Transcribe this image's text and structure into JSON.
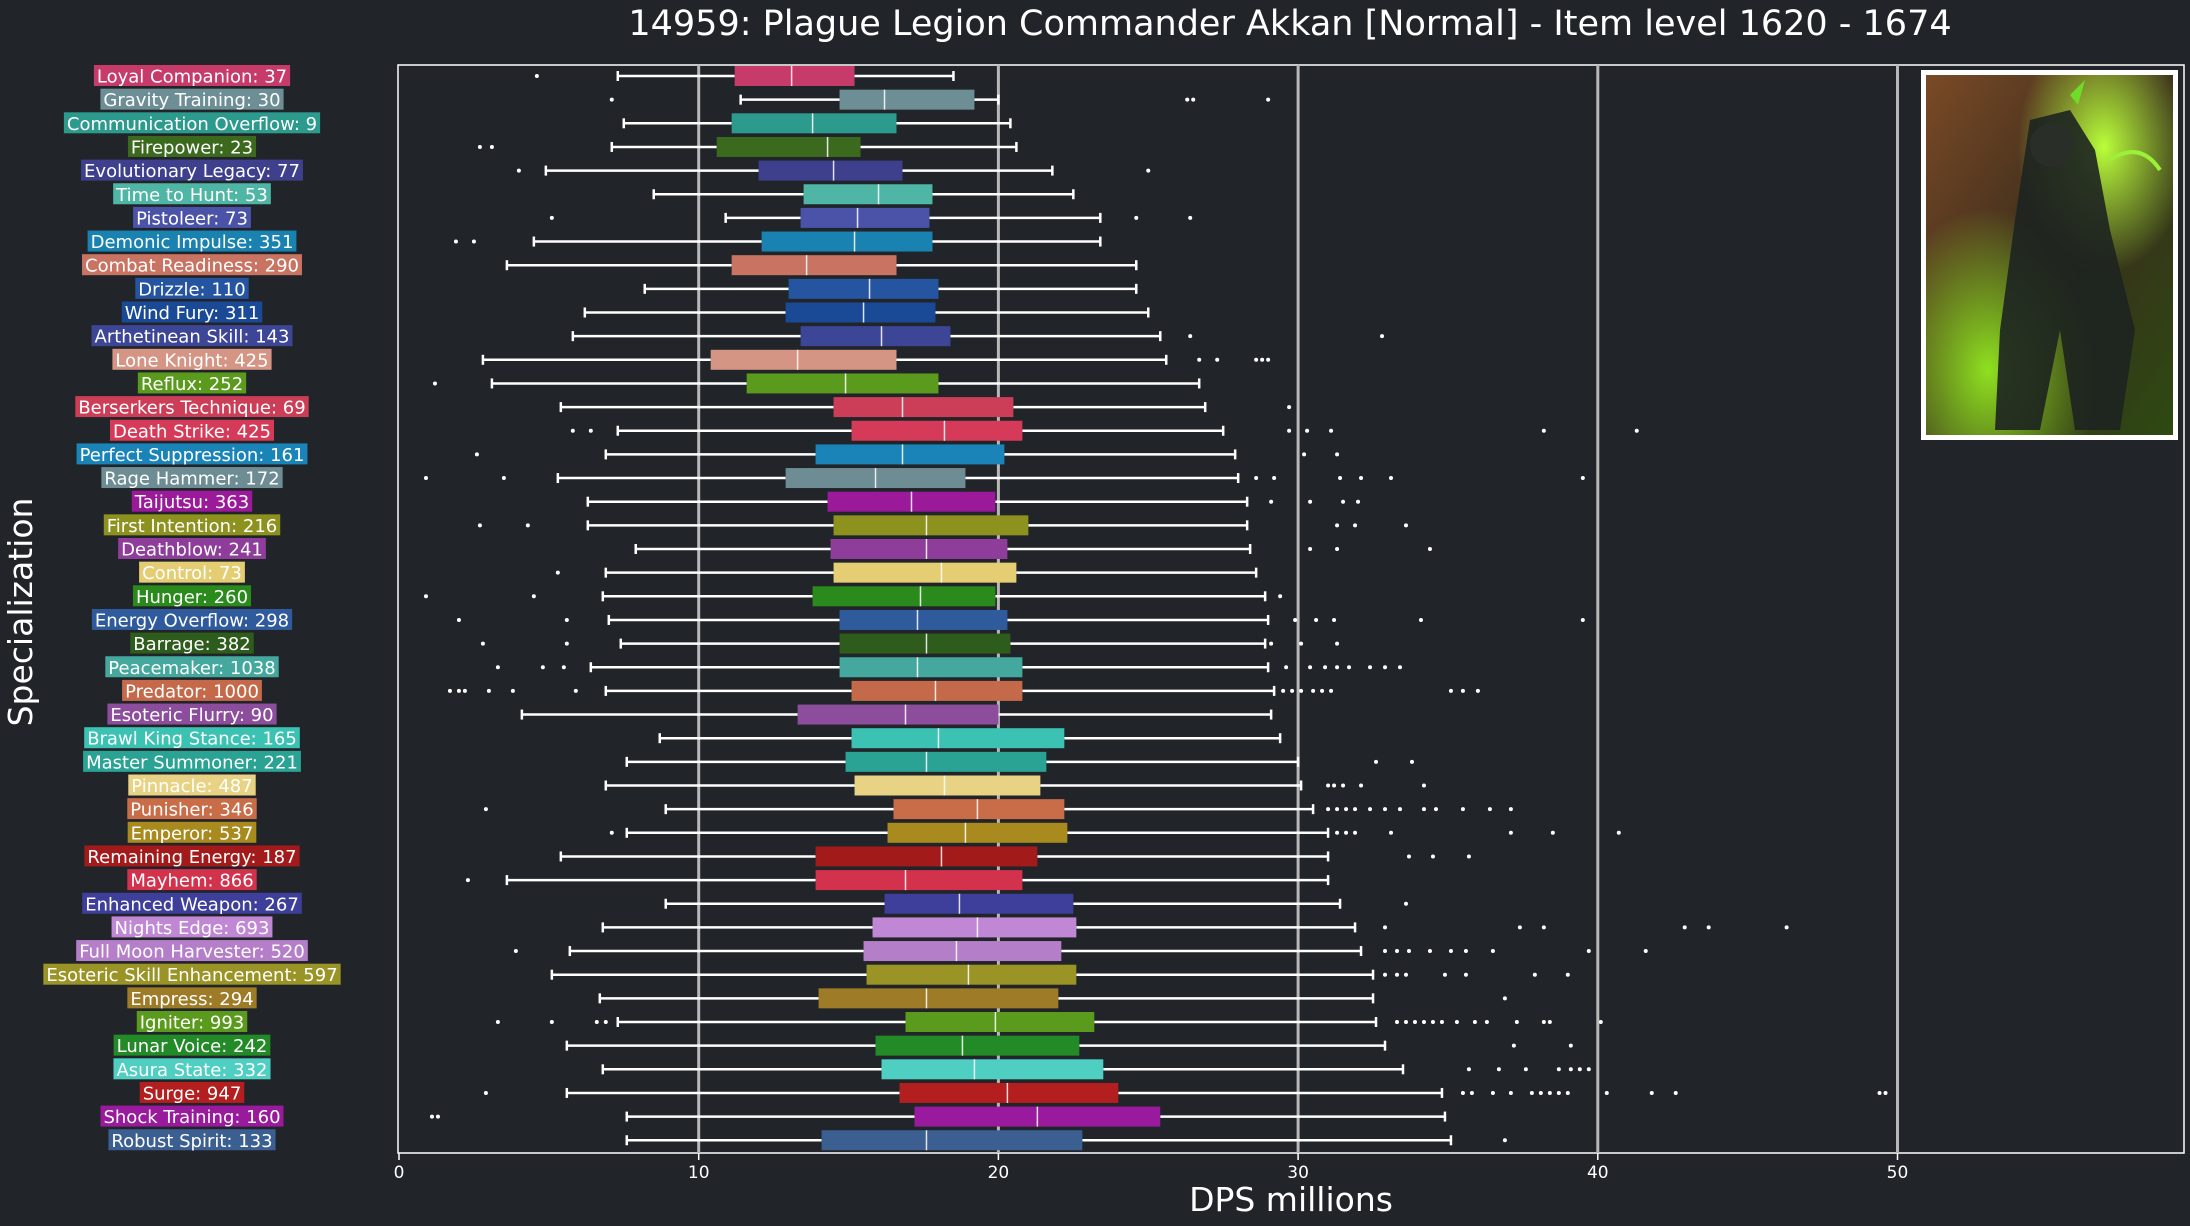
{
  "chart_data": {
    "type": "box",
    "title": "14959: Plague Legion Commander Akkan [Normal] - Item level 1620 - 1674",
    "xlabel": "DPS millions",
    "ylabel": "Specialization",
    "xlim": [
      0,
      59.5
    ],
    "xticks": [
      0,
      10,
      20,
      30,
      40,
      50
    ],
    "grid": "vertical lines at 10, 20, 30, 40, 50",
    "thumbnail": "boss-portrait (Plague Legion Commander Akkan, green flames)",
    "colors": {
      "background": "#212429",
      "grid": "#b8b8b8",
      "whisker": "#ffffff",
      "median": "#ffffff"
    },
    "series": [
      {
        "label": "Loyal Companion: 37",
        "color": "#c73b6a",
        "wmin": 7.3,
        "q1": 11.2,
        "med": 13.1,
        "q3": 15.2,
        "wmax": 18.5,
        "outliers": [
          4.6
        ]
      },
      {
        "label": "Gravity Training: 30",
        "color": "#6c8e94",
        "wmin": 11.4,
        "q1": 14.7,
        "med": 16.2,
        "q3": 19.2,
        "wmax": 20.0,
        "outliers": [
          7.1,
          26.3,
          26.5,
          29.0
        ]
      },
      {
        "label": "Communication Overflow: 9",
        "color": "#2c9a8c",
        "wmin": 7.5,
        "q1": 11.1,
        "med": 13.8,
        "q3": 16.6,
        "wmax": 20.4,
        "outliers": []
      },
      {
        "label": "Firepower: 23",
        "color": "#3b6a1e",
        "wmin": 7.1,
        "q1": 10.6,
        "med": 14.3,
        "q3": 15.4,
        "wmax": 20.6,
        "outliers": [
          2.7,
          3.1
        ]
      },
      {
        "label": "Evolutionary Legacy: 77",
        "color": "#3e3f8d",
        "wmin": 4.9,
        "q1": 12.0,
        "med": 14.5,
        "q3": 16.8,
        "wmax": 21.8,
        "outliers": [
          4.0,
          25.0
        ]
      },
      {
        "label": "Time to Hunt: 53",
        "color": "#4fb5a5",
        "wmin": 8.5,
        "q1": 13.5,
        "med": 16.0,
        "q3": 17.8,
        "wmax": 22.5,
        "outliers": []
      },
      {
        "label": "Pistoleer: 73",
        "color": "#4b53a8",
        "wmin": 10.9,
        "q1": 13.4,
        "med": 15.3,
        "q3": 17.7,
        "wmax": 23.4,
        "outliers": [
          5.1,
          24.6,
          26.4
        ]
      },
      {
        "label": "Demonic Impulse: 351",
        "color": "#1a82b0",
        "wmin": 4.5,
        "q1": 12.1,
        "med": 15.2,
        "q3": 17.8,
        "wmax": 23.4,
        "outliers": [
          1.9,
          2.5
        ]
      },
      {
        "label": "Combat Readiness: 290",
        "color": "#c97462",
        "wmin": 3.6,
        "q1": 11.1,
        "med": 13.6,
        "q3": 16.6,
        "wmax": 24.6,
        "outliers": []
      },
      {
        "label": "Drizzle: 110",
        "color": "#2554a0",
        "wmin": 8.2,
        "q1": 13.0,
        "med": 15.7,
        "q3": 18.0,
        "wmax": 24.6,
        "outliers": []
      },
      {
        "label": "Wind Fury: 311",
        "color": "#1a4a96",
        "wmin": 6.2,
        "q1": 12.9,
        "med": 15.5,
        "q3": 17.9,
        "wmax": 25.0,
        "outliers": []
      },
      {
        "label": "Arthetinean Skill: 143",
        "color": "#3c4596",
        "wmin": 5.8,
        "q1": 13.4,
        "med": 16.1,
        "q3": 18.4,
        "wmax": 25.4,
        "outliers": [
          26.4,
          32.8
        ]
      },
      {
        "label": "Lone Knight: 425",
        "color": "#d49585",
        "wmin": 2.8,
        "q1": 10.4,
        "med": 13.3,
        "q3": 16.6,
        "wmax": 25.6,
        "outliers": [
          26.7,
          27.3,
          28.6,
          28.8,
          29.0
        ]
      },
      {
        "label": "Reflux: 252",
        "color": "#5a9a1c",
        "wmin": 3.1,
        "q1": 11.6,
        "med": 14.9,
        "q3": 18.0,
        "wmax": 26.7,
        "outliers": [
          1.2
        ]
      },
      {
        "label": "Berserkers Technique: 69",
        "color": "#cc3e58",
        "wmin": 5.4,
        "q1": 14.5,
        "med": 16.8,
        "q3": 20.5,
        "wmax": 26.9,
        "outliers": [
          29.7
        ]
      },
      {
        "label": "Death Strike: 425",
        "color": "#d53b58",
        "wmin": 7.3,
        "q1": 15.1,
        "med": 18.2,
        "q3": 20.8,
        "wmax": 27.5,
        "outliers": [
          5.8,
          6.4,
          29.7,
          30.3,
          31.1,
          38.2,
          41.3
        ]
      },
      {
        "label": "Perfect Suppression: 161",
        "color": "#1a84b8",
        "wmin": 6.9,
        "q1": 13.9,
        "med": 16.8,
        "q3": 20.2,
        "wmax": 27.9,
        "outliers": [
          2.6,
          30.2,
          31.3
        ]
      },
      {
        "label": "Rage Hammer: 172",
        "color": "#6d8c94",
        "wmin": 5.3,
        "q1": 12.9,
        "med": 15.9,
        "q3": 18.9,
        "wmax": 28.0,
        "outliers": [
          0.9,
          3.5,
          28.6,
          29.2,
          31.4,
          32.1,
          33.1,
          39.5
        ]
      },
      {
        "label": "Taijutsu: 363",
        "color": "#9a1a9a",
        "wmin": 6.3,
        "q1": 14.3,
        "med": 17.1,
        "q3": 19.9,
        "wmax": 28.3,
        "outliers": [
          29.1,
          30.4,
          31.5,
          32.0
        ]
      },
      {
        "label": "First Intention: 216",
        "color": "#8d921e",
        "wmin": 6.3,
        "q1": 14.5,
        "med": 17.6,
        "q3": 21.0,
        "wmax": 28.3,
        "outliers": [
          2.7,
          4.3,
          31.3,
          31.9,
          33.6
        ]
      },
      {
        "label": "Deathblow: 241",
        "color": "#8e3e9a",
        "wmin": 7.9,
        "q1": 14.4,
        "med": 17.6,
        "q3": 20.3,
        "wmax": 28.4,
        "outliers": [
          30.4,
          31.3,
          34.4
        ]
      },
      {
        "label": "Control: 73",
        "color": "#e5cd73",
        "wmin": 6.9,
        "q1": 14.5,
        "med": 18.1,
        "q3": 20.6,
        "wmax": 28.6,
        "outliers": [
          5.3
        ]
      },
      {
        "label": "Hunger: 260",
        "color": "#2a8a1c",
        "wmin": 6.8,
        "q1": 13.8,
        "med": 17.4,
        "q3": 19.9,
        "wmax": 28.9,
        "outliers": [
          0.9,
          4.5,
          29.4
        ]
      },
      {
        "label": "Energy Overflow: 298",
        "color": "#2f5b9c",
        "wmin": 7.0,
        "q1": 14.7,
        "med": 17.3,
        "q3": 20.3,
        "wmax": 29.0,
        "outliers": [
          2.0,
          5.6,
          29.9,
          30.6,
          31.2,
          34.1,
          39.5
        ]
      },
      {
        "label": "Barrage: 382",
        "color": "#2e5c1c",
        "wmin": 7.4,
        "q1": 14.7,
        "med": 17.6,
        "q3": 20.4,
        "wmax": 28.9,
        "outliers": [
          2.8,
          5.6,
          29.1,
          30.1,
          31.3
        ]
      },
      {
        "label": "Peacemaker: 1038",
        "color": "#45a89e",
        "wmin": 6.4,
        "q1": 14.7,
        "med": 17.3,
        "q3": 20.8,
        "wmax": 29.0,
        "outliers": [
          3.3,
          4.8,
          5.5,
          29.6,
          30.4,
          30.9,
          31.3,
          31.7,
          32.4,
          32.9,
          33.4
        ]
      },
      {
        "label": "Predator: 1000",
        "color": "#c46a4a",
        "wmin": 6.9,
        "q1": 15.1,
        "med": 17.9,
        "q3": 20.8,
        "wmax": 29.2,
        "outliers": [
          1.7,
          2.0,
          2.2,
          3.0,
          3.8,
          5.9,
          29.5,
          29.8,
          30.1,
          30.5,
          30.8,
          31.1,
          35.1,
          35.5,
          36.0
        ]
      },
      {
        "label": "Esoteric Flurry: 90",
        "color": "#8c4e9c",
        "wmin": 4.1,
        "q1": 13.3,
        "med": 16.9,
        "q3": 20.0,
        "wmax": 29.1,
        "outliers": []
      },
      {
        "label": "Brawl King Stance: 165",
        "color": "#3bc2b3",
        "wmin": 8.7,
        "q1": 15.1,
        "med": 18.0,
        "q3": 22.2,
        "wmax": 29.4,
        "outliers": []
      },
      {
        "label": "Master Summoner: 221",
        "color": "#2aa394",
        "wmin": 7.6,
        "q1": 14.9,
        "med": 17.6,
        "q3": 21.6,
        "wmax": 30.0,
        "outliers": [
          32.6,
          33.8
        ]
      },
      {
        "label": "Pinnacle: 487",
        "color": "#e8d384",
        "wmin": 6.9,
        "q1": 15.2,
        "med": 18.2,
        "q3": 21.4,
        "wmax": 30.1,
        "outliers": [
          31.0,
          31.2,
          31.5,
          32.1,
          34.2
        ]
      },
      {
        "label": "Punisher: 346",
        "color": "#c96c48",
        "wmin": 8.9,
        "q1": 16.5,
        "med": 19.3,
        "q3": 22.2,
        "wmax": 30.5,
        "outliers": [
          2.9,
          31.0,
          31.3,
          31.6,
          31.9,
          32.4,
          32.9,
          33.4,
          34.2,
          34.6,
          35.5,
          36.4,
          37.1
        ]
      },
      {
        "label": "Emperor: 537",
        "color": "#a88a1e",
        "wmin": 7.6,
        "q1": 16.3,
        "med": 18.9,
        "q3": 22.3,
        "wmax": 31.0,
        "outliers": [
          7.1,
          31.3,
          31.6,
          31.9,
          33.1,
          37.1,
          38.5,
          40.7
        ]
      },
      {
        "label": "Remaining Energy: 187",
        "color": "#a31a1a",
        "wmin": 5.4,
        "q1": 13.9,
        "med": 18.1,
        "q3": 21.3,
        "wmax": 31.0,
        "outliers": [
          33.7,
          34.5,
          35.7
        ]
      },
      {
        "label": "Mayhem: 866",
        "color": "#d3324d",
        "wmin": 3.6,
        "q1": 13.9,
        "med": 16.9,
        "q3": 20.8,
        "wmax": 31.0,
        "outliers": [
          2.3
        ]
      },
      {
        "label": "Enhanced Weapon: 267",
        "color": "#3e3f9a",
        "wmin": 8.9,
        "q1": 16.2,
        "med": 18.7,
        "q3": 22.5,
        "wmax": 31.4,
        "outliers": [
          33.6
        ]
      },
      {
        "label": "Nights Edge: 693",
        "color": "#c087d4",
        "wmin": 6.8,
        "q1": 15.8,
        "med": 19.3,
        "q3": 22.6,
        "wmax": 31.9,
        "outliers": [
          32.9,
          37.4,
          38.2,
          42.9,
          43.7,
          46.3
        ]
      },
      {
        "label": "Full Moon Harvester: 520",
        "color": "#b57ec8",
        "wmin": 5.7,
        "q1": 15.5,
        "med": 18.6,
        "q3": 22.1,
        "wmax": 32.1,
        "outliers": [
          3.9,
          32.9,
          33.3,
          33.7,
          34.4,
          35.1,
          35.6,
          36.5,
          39.7,
          41.6
        ]
      },
      {
        "label": "Esoteric Skill Enhancement: 597",
        "color": "#9a9426",
        "wmin": 5.1,
        "q1": 15.6,
        "med": 19.0,
        "q3": 22.6,
        "wmax": 32.5,
        "outliers": [
          32.9,
          33.3,
          33.6,
          34.9,
          35.6,
          37.9,
          39.0
        ]
      },
      {
        "label": "Empress: 294",
        "color": "#9e7b26",
        "wmin": 6.7,
        "q1": 14.0,
        "med": 17.6,
        "q3": 22.0,
        "wmax": 32.5,
        "outliers": [
          36.9
        ]
      },
      {
        "label": "Igniter: 993",
        "color": "#5a9a1c",
        "wmin": 7.3,
        "q1": 16.9,
        "med": 19.9,
        "q3": 23.2,
        "wmax": 32.6,
        "outliers": [
          3.3,
          5.1,
          6.6,
          6.9,
          33.3,
          33.6,
          33.9,
          34.2,
          34.5,
          34.8,
          35.3,
          35.9,
          36.3,
          37.3,
          38.2,
          38.4,
          40.1
        ]
      },
      {
        "label": "Lunar Voice: 242",
        "color": "#228a26",
        "wmin": 5.6,
        "q1": 15.9,
        "med": 18.8,
        "q3": 22.7,
        "wmax": 32.9,
        "outliers": [
          37.2,
          39.1
        ]
      },
      {
        "label": "Asura State: 332",
        "color": "#4fcec2",
        "wmin": 6.8,
        "q1": 16.1,
        "med": 19.2,
        "q3": 23.5,
        "wmax": 33.5,
        "outliers": [
          35.7,
          36.7,
          37.6,
          38.7,
          39.1,
          39.4,
          39.7
        ]
      },
      {
        "label": "Surge: 947",
        "color": "#b31e1e",
        "wmin": 5.6,
        "q1": 16.7,
        "med": 20.3,
        "q3": 24.0,
        "wmax": 34.8,
        "outliers": [
          2.9,
          35.5,
          35.8,
          36.5,
          37.1,
          37.8,
          38.1,
          38.4,
          38.7,
          39.0,
          40.3,
          41.8,
          42.6,
          49.4,
          49.6
        ]
      },
      {
        "label": "Shock Training: 160",
        "color": "#9a1a9e",
        "wmin": 7.6,
        "q1": 17.2,
        "med": 21.3,
        "q3": 25.4,
        "wmax": 34.9,
        "outliers": [
          1.1,
          1.3
        ]
      },
      {
        "label": "Robust Spirit: 133",
        "color": "#3c5f92",
        "wmin": 7.6,
        "q1": 14.1,
        "med": 17.6,
        "q3": 22.8,
        "wmax": 35.1,
        "outliers": [
          36.9
        ]
      }
    ]
  }
}
